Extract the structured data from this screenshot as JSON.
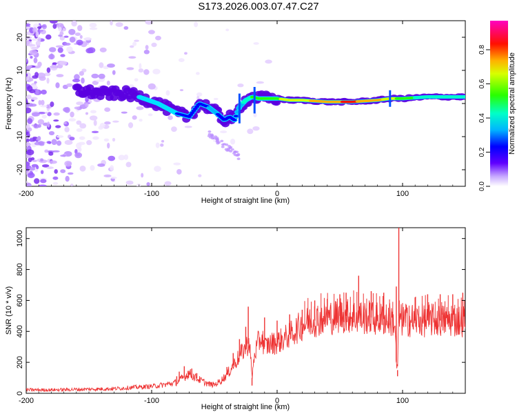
{
  "title": "S173.2026.003.07.47.C27",
  "chart_data": [
    {
      "type": "heatmap",
      "xlabel": "Height of straight line (km)",
      "ylabel": "Frequency (Hz)",
      "xlim": [
        -200,
        150
      ],
      "ylim": [
        -25,
        25
      ],
      "xticks": [
        -200,
        -100,
        0,
        100
      ],
      "yticks": [
        -20,
        -10,
        0,
        10,
        20
      ],
      "colorbar": {
        "label": "Normalized spectral amplitude",
        "range": [
          0,
          0.97
        ],
        "ticks": [
          0.0,
          0.2,
          0.4,
          0.6,
          0.8
        ],
        "colors": [
          "#ffffff",
          "#e6ccff",
          "#9f66ff",
          "#5a00e0",
          "#0000ff",
          "#00c8ff",
          "#00ff90",
          "#40ff00",
          "#ffff00",
          "#ff8000",
          "#ff0000",
          "#ff00a0"
        ]
      },
      "ridge": {
        "x": [
          -160,
          -140,
          -120,
          -110,
          -95,
          -80,
          -70,
          -62,
          -55,
          -48,
          -42,
          -38,
          -34,
          -30,
          -25,
          -20,
          -15,
          -10,
          0,
          10,
          20,
          40,
          60,
          80,
          90,
          100,
          120,
          150
        ],
        "y": [
          4,
          3,
          3,
          2,
          0,
          -3,
          -4,
          0,
          -1,
          -3,
          -5,
          -4,
          -5,
          -1,
          1,
          2,
          1.5,
          1.5,
          1.5,
          1,
          1,
          0.5,
          0.5,
          1,
          1.5,
          1.5,
          2,
          2
        ],
        "amplitude": [
          0.1,
          0.15,
          0.18,
          0.2,
          0.25,
          0.3,
          0.3,
          0.3,
          0.35,
          0.35,
          0.3,
          0.3,
          0.3,
          0.4,
          0.5,
          0.55,
          0.6,
          0.6,
          0.65,
          0.75,
          0.75,
          0.85,
          0.9,
          0.8,
          0.75,
          0.6,
          0.5,
          0.45
        ]
      }
    },
    {
      "type": "line",
      "xlabel": "Height of straight line (km)",
      "ylabel": "SNR (10 * v/v)",
      "xlim": [
        -200,
        150
      ],
      "ylim": [
        0,
        1070
      ],
      "xticks": [
        -200,
        -100,
        0,
        100
      ],
      "yticks": [
        0,
        200,
        400,
        600,
        800,
        1000
      ],
      "color": "#ee3333",
      "series": [
        {
          "x": [
            -200,
            -180,
            -160,
            -140,
            -130,
            -120,
            -110,
            -100,
            -90,
            -80,
            -75,
            -70,
            -65,
            -60,
            -55,
            -50,
            -45,
            -40,
            -35,
            -30,
            -25,
            -22,
            -20,
            -18,
            -15,
            -12,
            -10,
            -5,
            0,
            5,
            10,
            15,
            20,
            25,
            30,
            35,
            40,
            45,
            50,
            55,
            60,
            65,
            70,
            75,
            80,
            85,
            90,
            94,
            95,
            96,
            97,
            98,
            99,
            100,
            105,
            110,
            120,
            130,
            140,
            150
          ],
          "y": [
            22,
            22,
            25,
            28,
            30,
            35,
            40,
            45,
            55,
            70,
            100,
            130,
            100,
            80,
            60,
            55,
            80,
            120,
            180,
            240,
            300,
            330,
            100,
            250,
            330,
            360,
            300,
            320,
            330,
            350,
            380,
            410,
            440,
            460,
            470,
            480,
            490,
            490,
            500,
            500,
            500,
            490,
            490,
            490,
            480,
            480,
            480,
            450,
            200,
            150,
            500,
            480,
            470,
            470,
            470,
            470,
            470,
            470,
            470,
            470
          ]
        }
      ],
      "spikes": [
        {
          "x": -80,
          "y": 110
        },
        {
          "x": -78,
          "y": 140
        },
        {
          "x": -74,
          "y": 175
        },
        {
          "x": -71,
          "y": 145
        },
        {
          "x": -68,
          "y": 160
        },
        {
          "x": -64,
          "y": 130
        },
        {
          "x": -40,
          "y": 170
        },
        {
          "x": -35,
          "y": 260
        },
        {
          "x": -30,
          "y": 350
        },
        {
          "x": -25,
          "y": 430
        },
        {
          "x": -23,
          "y": 560
        },
        {
          "x": -20,
          "y": 50
        },
        {
          "x": -10,
          "y": 490
        },
        {
          "x": 0,
          "y": 470
        },
        {
          "x": 10,
          "y": 510
        },
        {
          "x": 20,
          "y": 540
        },
        {
          "x": 30,
          "y": 600
        },
        {
          "x": 40,
          "y": 610
        },
        {
          "x": 50,
          "y": 640
        },
        {
          "x": 55,
          "y": 650
        },
        {
          "x": 65,
          "y": 760
        },
        {
          "x": 75,
          "y": 660
        },
        {
          "x": 85,
          "y": 650
        },
        {
          "x": 95,
          "y": 690
        },
        {
          "x": 96,
          "y": 110
        },
        {
          "x": 97,
          "y": 1070
        },
        {
          "x": 110,
          "y": 620
        },
        {
          "x": 120,
          "y": 640
        },
        {
          "x": 130,
          "y": 640
        },
        {
          "x": 140,
          "y": 640
        },
        {
          "x": 148,
          "y": 650
        }
      ]
    }
  ]
}
